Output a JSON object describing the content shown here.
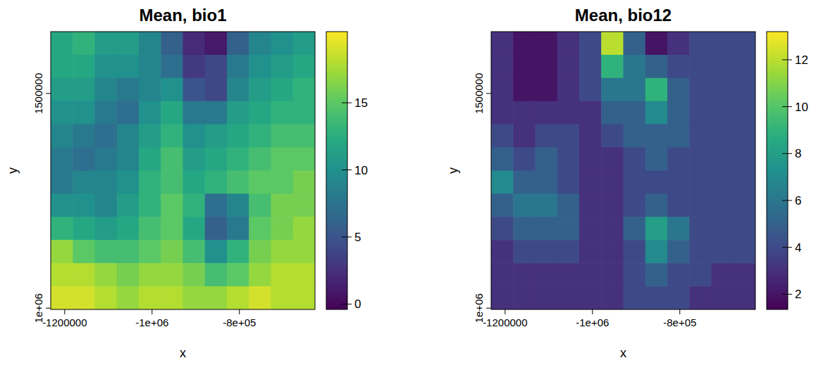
{
  "chart_data": [
    {
      "type": "heatmap",
      "title": "Mean, bio1",
      "x_label": "x",
      "y_label": "y",
      "xlim": [
        -1232000,
        -627000
      ],
      "ylim": [
        997000,
        1644000
      ],
      "xticks": [
        -1200000,
        {
          "value": -1000000,
          "label": "-1e+06"
        },
        {
          "value": -800000,
          "label": "-8e+05"
        }
      ],
      "yticks": [
        {
          "value": 1000000,
          "label": "1e+06"
        },
        1500000
      ],
      "colorbar_lim": [
        -0.4,
        20.3
      ],
      "colorbar_ticks": [
        0,
        5,
        10,
        15
      ],
      "cells": [
        [
          12,
          13,
          11,
          11,
          9,
          6,
          2,
          1,
          6,
          9,
          10,
          11
        ],
        [
          12,
          12,
          10,
          10,
          9,
          7,
          3,
          4,
          8,
          10,
          11,
          12
        ],
        [
          11,
          11,
          9,
          8,
          9,
          10,
          5,
          4,
          9,
          11,
          12,
          13
        ],
        [
          10,
          10,
          8,
          7,
          10,
          12,
          8,
          8,
          11,
          12,
          13,
          13
        ],
        [
          9,
          8,
          7,
          9,
          11,
          13,
          10,
          11,
          12,
          13,
          14,
          14
        ],
        [
          8,
          7,
          8,
          9,
          12,
          14,
          11,
          12,
          13,
          14,
          15,
          15
        ],
        [
          8,
          9,
          9,
          10,
          13,
          14,
          12,
          13,
          14,
          15,
          15,
          16
        ],
        [
          10,
          10,
          9,
          11,
          13,
          15,
          13,
          7,
          9,
          14,
          16,
          16
        ],
        [
          13,
          12,
          11,
          12,
          14,
          15,
          12,
          6,
          8,
          15,
          16,
          17
        ],
        [
          17,
          15,
          14,
          14,
          15,
          16,
          14,
          10,
          13,
          16,
          17,
          17
        ],
        [
          18,
          18,
          17,
          16,
          17,
          17,
          16,
          14,
          15,
          17,
          18,
          18
        ],
        [
          19,
          19,
          18,
          17,
          18,
          18,
          17,
          17,
          18,
          19,
          18,
          18
        ]
      ]
    },
    {
      "type": "heatmap",
      "title": "Mean, bio12",
      "x_label": "x",
      "y_label": "y",
      "xlim": [
        -1232000,
        -627000
      ],
      "ylim": [
        997000,
        1644000
      ],
      "xticks": [
        -1200000,
        {
          "value": -1000000,
          "label": "-1e+06"
        },
        {
          "value": -800000,
          "label": "-8e+05"
        }
      ],
      "yticks": [
        {
          "value": 1000000,
          "label": "1e+06"
        },
        1500000
      ],
      "colorbar_lim": [
        1.35,
        13.2
      ],
      "colorbar_ticks": [
        2,
        4,
        6,
        8,
        10,
        12
      ],
      "cells": [
        [
          3,
          2,
          2,
          3,
          4,
          12,
          5,
          2,
          3,
          4,
          4,
          4
        ],
        [
          3,
          2,
          2,
          3,
          4,
          9,
          6,
          5,
          4,
          4,
          4,
          4
        ],
        [
          3,
          2,
          2,
          3,
          4,
          6,
          6,
          9,
          5,
          4,
          4,
          4
        ],
        [
          3,
          3,
          3,
          3,
          3,
          5,
          5,
          7,
          5,
          4,
          4,
          4
        ],
        [
          4,
          3,
          4,
          4,
          3,
          4,
          5,
          5,
          5,
          4,
          4,
          4
        ],
        [
          5,
          4,
          5,
          4,
          3,
          3,
          4,
          5,
          4,
          4,
          4,
          4
        ],
        [
          7,
          5,
          5,
          4,
          3,
          3,
          4,
          4,
          4,
          4,
          4,
          4
        ],
        [
          5,
          6,
          6,
          5,
          3,
          3,
          4,
          5,
          4,
          4,
          4,
          4
        ],
        [
          4,
          5,
          5,
          5,
          3,
          3,
          5,
          8,
          6,
          4,
          4,
          4
        ],
        [
          3,
          4,
          4,
          4,
          3,
          3,
          4,
          7,
          5,
          4,
          4,
          4
        ],
        [
          3,
          3,
          3,
          3,
          3,
          3,
          4,
          5,
          4,
          4,
          3,
          3
        ],
        [
          3,
          3,
          3,
          3,
          3,
          3,
          4,
          4,
          4,
          3,
          3,
          3
        ]
      ]
    }
  ]
}
